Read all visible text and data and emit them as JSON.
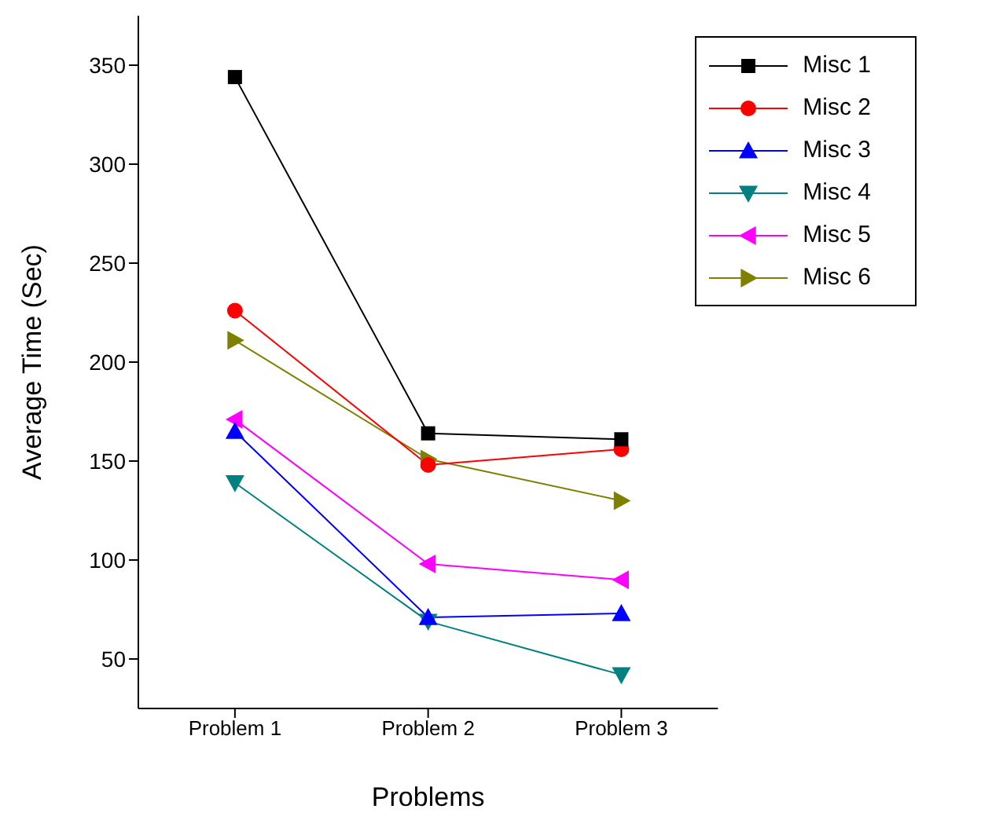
{
  "chart_data": {
    "type": "line",
    "xlabel": "Problems",
    "ylabel": "Average Time (Sec)",
    "categories": [
      "Problem 1",
      "Problem 2",
      "Problem 3"
    ],
    "ylim": [
      25,
      375
    ],
    "yticks": [
      50,
      100,
      150,
      200,
      250,
      300,
      350
    ],
    "grid": false,
    "legend": "top right",
    "series": [
      {
        "name": "Misc 1",
        "color": "#000000",
        "marker": "square",
        "values": [
          344,
          164,
          161
        ]
      },
      {
        "name": "Misc 2",
        "color": "#ff0000",
        "marker": "circle",
        "values": [
          226,
          148,
          156
        ]
      },
      {
        "name": "Misc 3",
        "color": "#0000ff",
        "marker": "triangle",
        "values": [
          165,
          71,
          73
        ]
      },
      {
        "name": "Misc 4",
        "color": "#008080",
        "marker": "triangle-down",
        "values": [
          139,
          69,
          42
        ]
      },
      {
        "name": "Misc 5",
        "color": "#ff00ff",
        "marker": "triangle-left",
        "values": [
          171,
          98,
          90
        ]
      },
      {
        "name": "Misc 6",
        "color": "#808000",
        "marker": "triangle-right",
        "values": [
          211,
          151,
          130
        ]
      }
    ]
  }
}
